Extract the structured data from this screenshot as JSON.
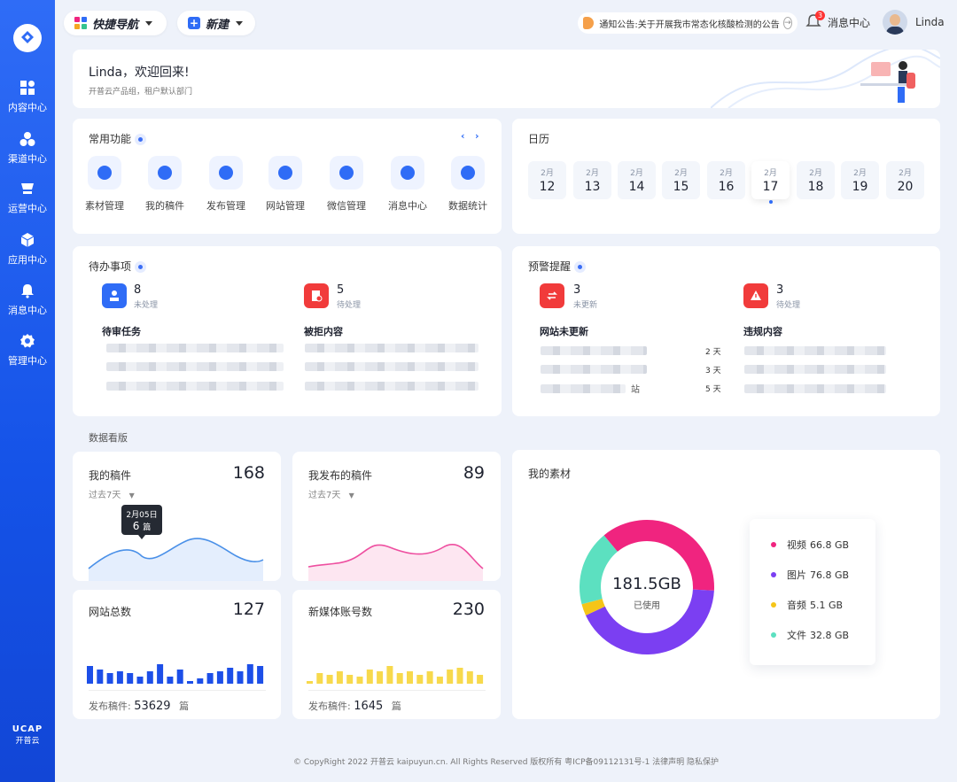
{
  "sidebar": {
    "items": [
      {
        "label": "内容中心",
        "icon": "grid-icon"
      },
      {
        "label": "渠道中心",
        "icon": "channel-icon"
      },
      {
        "label": "运营中心",
        "icon": "operation-icon"
      },
      {
        "label": "应用中心",
        "icon": "cube-icon"
      },
      {
        "label": "消息中心",
        "icon": "bell-icon"
      },
      {
        "label": "管理中心",
        "icon": "gear-icon"
      }
    ],
    "brand_top": "UCAP",
    "brand_bottom": "开普云"
  },
  "topbar": {
    "quicknav": "快捷导航",
    "new": "新建",
    "notice_label": "通知公告:",
    "notice_text": "关于开展我市常态化核酸检测的公告",
    "bell_badge": "3",
    "msg_center": "消息中心",
    "user": "Linda"
  },
  "welcome": {
    "title": "Linda，欢迎回来!",
    "subtitle": "开普云产品组，租户默认部门"
  },
  "functions": {
    "title": "常用功能",
    "items": [
      "素材管理",
      "我的稿件",
      "发布管理",
      "网站管理",
      "微信管理",
      "消息中心",
      "数据统计"
    ]
  },
  "calendar": {
    "title": "日历",
    "days": [
      {
        "m": "2月",
        "d": "12"
      },
      {
        "m": "2月",
        "d": "13"
      },
      {
        "m": "2月",
        "d": "14"
      },
      {
        "m": "2月",
        "d": "15"
      },
      {
        "m": "2月",
        "d": "16"
      },
      {
        "m": "2月",
        "d": "17"
      },
      {
        "m": "2月",
        "d": "18"
      },
      {
        "m": "2月",
        "d": "19"
      },
      {
        "m": "2月",
        "d": "20"
      }
    ]
  },
  "todo": {
    "title": "待办事项",
    "a": {
      "num": "8",
      "sub": "未处理",
      "heading": "待审任务"
    },
    "b": {
      "num": "5",
      "sub": "待处理",
      "heading": "被拒内容"
    }
  },
  "alert": {
    "title": "预警提醒",
    "a": {
      "num": "3",
      "sub": "未更新",
      "heading": "网站未更新",
      "days": [
        "2 天",
        "3 天",
        "5 天"
      ],
      "tail": "站"
    },
    "b": {
      "num": "3",
      "sub": "待处理",
      "heading": "违规内容"
    }
  },
  "board": {
    "title": "数据看版",
    "my": {
      "label": "我的稿件",
      "value": "168",
      "range": "过去7天",
      "tip_date": "2月05日",
      "tip_num": "6",
      "tip_unit": "篇"
    },
    "pub": {
      "label": "我发布的稿件",
      "value": "89",
      "range": "过去7天"
    },
    "site": {
      "label": "网站总数",
      "value": "127",
      "foot_label": "发布稿件:",
      "foot_value": "53629",
      "foot_unit": "篇"
    },
    "media": {
      "label": "新媒体账号数",
      "value": "230",
      "foot_label": "发布稿件:",
      "foot_value": "1645",
      "foot_unit": "篇"
    },
    "material": {
      "label": "我的素材",
      "total": "181.5GB",
      "used": "已使用",
      "legend": [
        {
          "name": "视频",
          "value": "66.8 GB",
          "color": "#f0247f"
        },
        {
          "name": "图片",
          "value": "76.8 GB",
          "color": "#7b3ff2"
        },
        {
          "name": "音频",
          "value": "5.1 GB",
          "color": "#f5c518"
        },
        {
          "name": "文件",
          "value": "32.8 GB",
          "color": "#5ce0c0"
        }
      ]
    }
  },
  "footer": "© CopyRight 2022 开普云 kaipuyun.cn. All Rights Reserved 版权所有 粤ICP备09112131号-1 法律声明 隐私保护"
}
